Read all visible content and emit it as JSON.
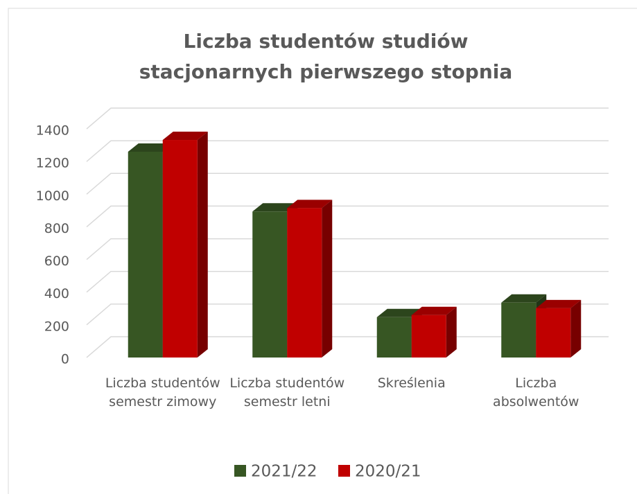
{
  "chart_data": {
    "type": "bar3d",
    "title": "Liczba studentów studiów stacjonarnych pierwszego stopnia",
    "categories": [
      "Liczba studentów semestr zimowy",
      "Liczba studentów semestr letni",
      "Skreślenia",
      "Liczba absolwentów"
    ],
    "series": [
      {
        "name": "2021/22",
        "color": "#375623",
        "values": [
          1260,
          894,
          247,
          336
        ]
      },
      {
        "name": "2020/21",
        "color": "#c00000",
        "values": [
          1332,
          915,
          260,
          302
        ]
      }
    ],
    "ylim": [
      0,
      1400
    ],
    "yticks": [
      0,
      200,
      400,
      600,
      800,
      1000,
      1200,
      1400
    ],
    "grid": true,
    "legend": "bottom"
  }
}
